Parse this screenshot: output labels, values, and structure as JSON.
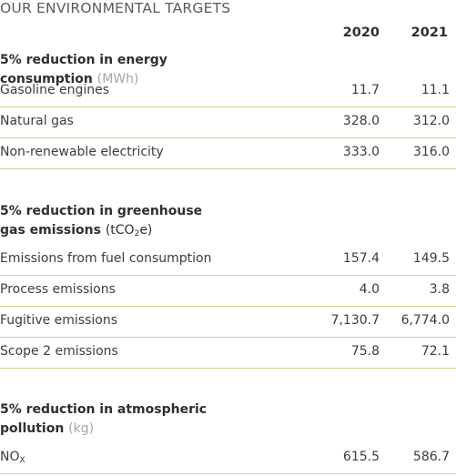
{
  "title": "OUR ENVIRONMENTAL TARGETS",
  "years": [
    "2020",
    "2021"
  ],
  "sections": [
    {
      "heading_line1": "5% reduction in energy consumption",
      "heading_line2": "",
      "unit": "(MWh)",
      "rows": [
        {
          "label": "Gasoline engines",
          "v2020": "11.7",
          "v2021": "11.1"
        },
        {
          "label": "Natural gas",
          "v2020": "328.0",
          "v2021": "312.0"
        },
        {
          "label": "Non-renewable electricity",
          "v2020": "333.0",
          "v2021": "316.0"
        }
      ]
    },
    {
      "heading_line1": "5% reduction in greenhouse",
      "heading_line2": "gas emissions",
      "unit_pre": "(tCO",
      "unit_sub": "2",
      "unit_post": "e)",
      "rows": [
        {
          "label": "Emissions from fuel consumption",
          "v2020": "157.4",
          "v2021": "149.5"
        },
        {
          "label": "Process emissions",
          "v2020": "4.0",
          "v2021": "3.8"
        },
        {
          "label": "Fugitive emissions",
          "v2020": "7,130.7",
          "v2021": "6,774.0"
        },
        {
          "label": "Scope 2 emissions",
          "v2020": "75.8",
          "v2021": "72.1"
        }
      ]
    },
    {
      "heading_line1": "5% reduction in atmospheric",
      "heading_line2": "pollution",
      "unit": "(kg)",
      "rows": [
        {
          "label_pre": "NO",
          "label_sub": "X",
          "v2020": "615.5",
          "v2021": "586.7"
        }
      ]
    }
  ]
}
